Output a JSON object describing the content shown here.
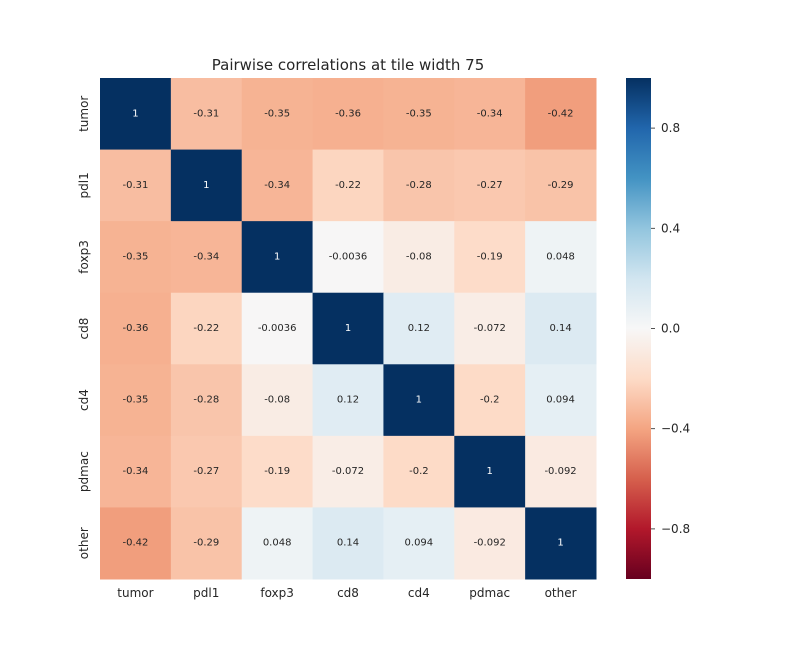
{
  "chart_data": {
    "type": "heatmap",
    "title": "Pairwise correlations at tile width 75",
    "xlabel": "",
    "ylabel": "",
    "x_categories": [
      "tumor",
      "pdl1",
      "foxp3",
      "cd8",
      "cd4",
      "pdmac",
      "other"
    ],
    "y_categories": [
      "tumor",
      "pdl1",
      "foxp3",
      "cd8",
      "cd4",
      "pdmac",
      "other"
    ],
    "values": [
      [
        1,
        -0.31,
        -0.35,
        -0.36,
        -0.35,
        -0.34,
        -0.42
      ],
      [
        -0.31,
        1,
        -0.34,
        -0.22,
        -0.28,
        -0.27,
        -0.29
      ],
      [
        -0.35,
        -0.34,
        1,
        -0.0036,
        -0.08,
        -0.19,
        0.048
      ],
      [
        -0.36,
        -0.22,
        -0.0036,
        1,
        0.12,
        -0.072,
        0.14
      ],
      [
        -0.35,
        -0.28,
        -0.08,
        0.12,
        1,
        -0.2,
        0.094
      ],
      [
        -0.34,
        -0.27,
        -0.19,
        -0.072,
        -0.2,
        1,
        -0.092
      ],
      [
        -0.42,
        -0.29,
        0.048,
        0.14,
        0.094,
        -0.092,
        1
      ]
    ],
    "annotations": [
      [
        "1",
        "-0.31",
        "-0.35",
        "-0.36",
        "-0.35",
        "-0.34",
        "-0.42"
      ],
      [
        "-0.31",
        "1",
        "-0.34",
        "-0.22",
        "-0.28",
        "-0.27",
        "-0.29"
      ],
      [
        "-0.35",
        "-0.34",
        "1",
        "-0.0036",
        "-0.08",
        "-0.19",
        "0.048"
      ],
      [
        "-0.36",
        "-0.22",
        "-0.0036",
        "1",
        "0.12",
        "-0.072",
        "0.14"
      ],
      [
        "-0.35",
        "-0.28",
        "-0.08",
        "0.12",
        "1",
        "-0.2",
        "0.094"
      ],
      [
        "-0.34",
        "-0.27",
        "-0.19",
        "-0.072",
        "-0.2",
        "1",
        "-0.092"
      ],
      [
        "-0.42",
        "-0.29",
        "0.048",
        "0.14",
        "0.094",
        "-0.092",
        "1"
      ]
    ],
    "colormap": "RdBu",
    "vmin": -1,
    "vmax": 1,
    "colorbar_ticks": [
      0.8,
      0.4,
      0.0,
      -0.4,
      -0.8
    ],
    "colorbar_tick_labels": [
      "0.8",
      "0.4",
      "0.0",
      "−0.4",
      "−0.8"
    ],
    "grid": false,
    "colorbar_position": "right"
  }
}
